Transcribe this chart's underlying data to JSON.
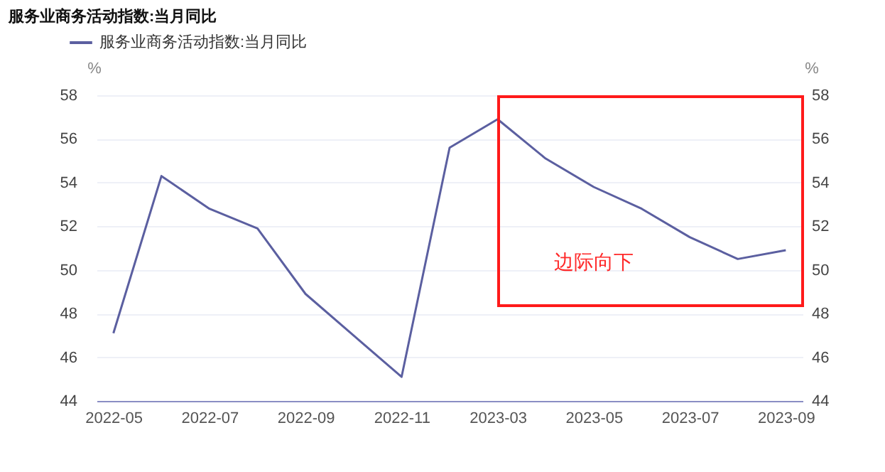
{
  "chart_data": {
    "type": "line",
    "title": "服务业商务活动指数:当月同比",
    "categories": [
      "2022-05",
      null,
      "2022-07",
      null,
      "2022-09",
      null,
      "2022-11",
      null,
      "2023-03",
      null,
      "2023-05",
      null,
      "2023-07",
      null,
      "2023-09"
    ],
    "series": [
      {
        "name": "服务业商务活动指数:当月同比",
        "color": "#5b5fa0",
        "values": [
          47.1,
          54.3,
          52.8,
          51.9,
          48.9,
          47.0,
          45.1,
          55.6,
          56.9,
          55.1,
          53.8,
          52.8,
          51.5,
          50.5,
          50.9
        ]
      }
    ],
    "ylabel": "%",
    "y2label": "%",
    "ylim": [
      44,
      58
    ],
    "yticks": [
      44,
      46,
      48,
      50,
      52,
      54,
      56,
      58
    ],
    "y2lim": [
      44,
      58
    ],
    "y2ticks": [
      44,
      46,
      48,
      50,
      52,
      54,
      56,
      58
    ],
    "grid": "y",
    "legend": "top left",
    "marker": "none",
    "line_style": "solid",
    "annotations": [
      "边际向下"
    ]
  }
}
